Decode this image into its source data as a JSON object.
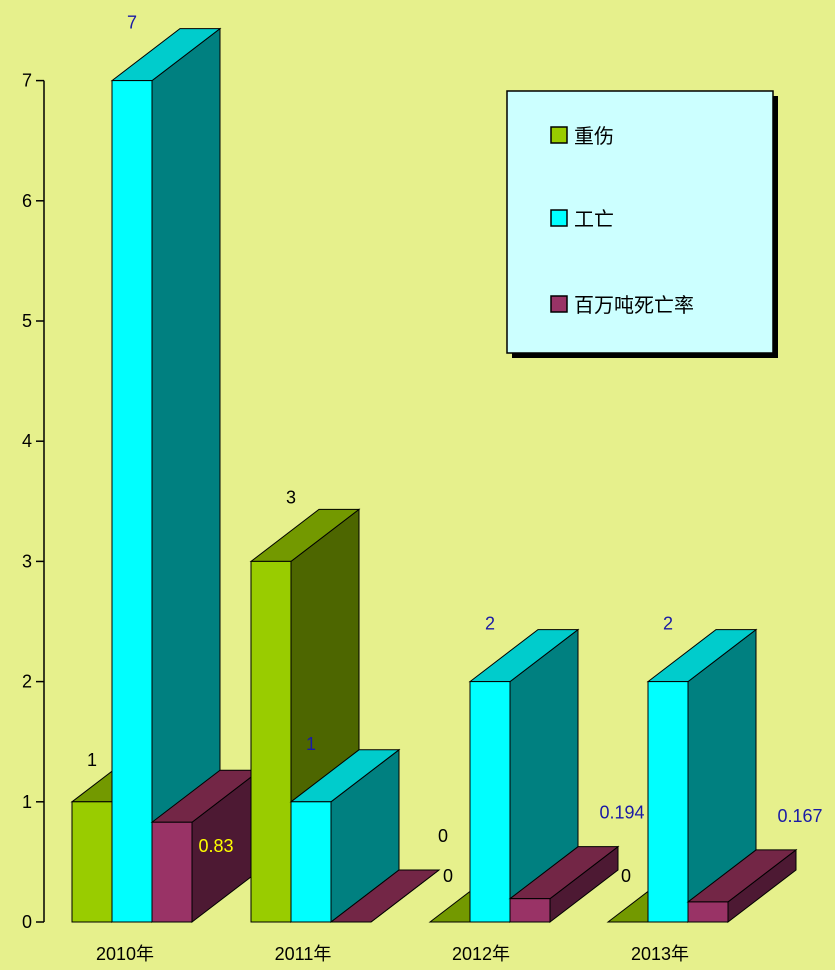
{
  "chart_data": {
    "type": "bar",
    "subtype": "3d-clustered-column",
    "categories": [
      "2010年",
      "2011年",
      "2012年",
      "2013年"
    ],
    "series": [
      {
        "name": "重伤",
        "values": [
          1,
          3,
          0,
          0
        ],
        "color": "#99cc00",
        "side_color": "#4d6600",
        "top_color": "#739900"
      },
      {
        "name": "工亡",
        "values": [
          7,
          1,
          2,
          2
        ],
        "color": "#00ffff",
        "side_color": "#008080",
        "top_color": "#00cccc"
      },
      {
        "name": "百万吨死亡率",
        "values": [
          0.83,
          0,
          0.194,
          0.167
        ],
        "color": "#993366",
        "side_color": "#4d1933",
        "top_color": "#732646"
      }
    ],
    "data_labels": [
      [
        "1",
        "3",
        "0",
        "0"
      ],
      [
        "7",
        "1",
        "2",
        "2"
      ],
      [
        "0.83",
        "0",
        "0.194",
        "0.167"
      ]
    ],
    "data_label_colors": [
      [
        "#000000",
        "#000000",
        "#000000",
        "#000000"
      ],
      [
        "#1a1aa6",
        "#1a1aa6",
        "#1a1aa6",
        "#1a1aa6"
      ],
      [
        "#ffff00",
        "#000000",
        "#1a1aa6",
        "#1a1aa6"
      ]
    ],
    "y_ticks": [
      "0",
      "1",
      "2",
      "3",
      "4",
      "5",
      "6",
      "7"
    ],
    "ylim": [
      0,
      7
    ],
    "grid": false,
    "legend_position": "top-right",
    "legend": {
      "background": "#ccffff"
    },
    "colors": {
      "background": "#e6f08c"
    }
  }
}
